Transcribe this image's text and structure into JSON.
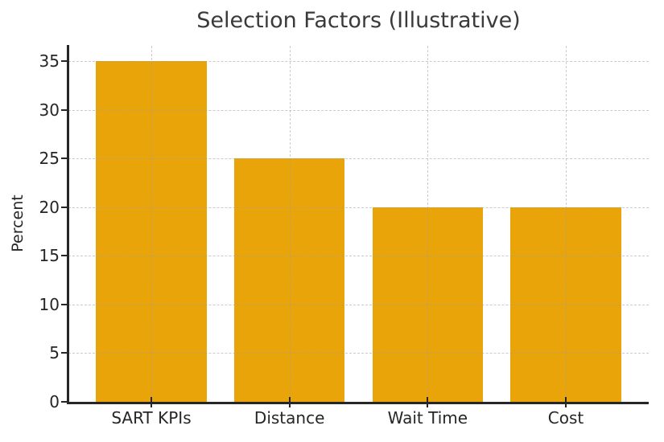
{
  "chart_data": {
    "type": "bar",
    "title": "Selection Factors (Illustrative)",
    "ylabel": "Percent",
    "xlabel": "",
    "categories": [
      "SART KPIs",
      "Distance",
      "Wait Time",
      "Cost"
    ],
    "values": [
      35,
      25,
      20,
      20
    ],
    "yticks": [
      0,
      5,
      10,
      15,
      20,
      25,
      30,
      35
    ],
    "ylim": [
      0,
      36.6
    ],
    "grid": "dashed, horizontal and vertical at category centers, drawn over bars",
    "legend": "none",
    "bar_color": "#E9A40A",
    "axis_color": "#262626",
    "grid_color": "#cccccc",
    "title_color": "#3a3a3a"
  }
}
